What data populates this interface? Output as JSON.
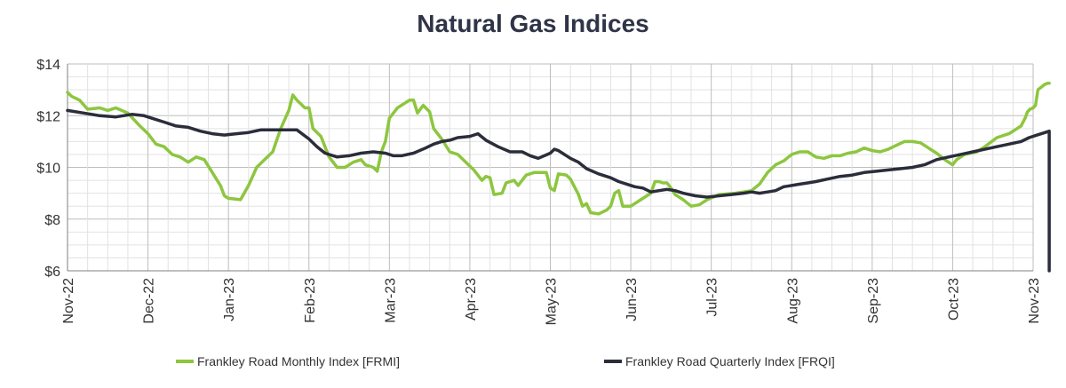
{
  "chart_data": {
    "type": "line",
    "title": "Natural Gas Indices",
    "xlabel": "",
    "ylabel": "",
    "ylim": [
      6,
      14
    ],
    "y_ticks": [
      "$6",
      "$8",
      "$10",
      "$12",
      "$14"
    ],
    "y_tick_values": [
      6,
      8,
      10,
      12,
      14
    ],
    "x_ticks": [
      "Nov-22",
      "Dec-22",
      "Jan-23",
      "Feb-23",
      "Mar-23",
      "Apr-23",
      "May-23",
      "Jun-23",
      "Jul-23",
      "Aug-23",
      "Sep-23",
      "Oct-23",
      "Nov-23"
    ],
    "grid": true,
    "legend_position": "bottom",
    "series": [
      {
        "name": "Frankley Road Monthly Index [FRMI]",
        "color": "#8dc63f",
        "points": [
          [
            0,
            12.9
          ],
          [
            0.05,
            12.75
          ],
          [
            0.15,
            12.6
          ],
          [
            0.25,
            12.25
          ],
          [
            0.4,
            12.3
          ],
          [
            0.5,
            12.2
          ],
          [
            0.6,
            12.3
          ],
          [
            0.75,
            12.1
          ],
          [
            0.9,
            11.6
          ],
          [
            1.0,
            11.3
          ],
          [
            1.1,
            10.9
          ],
          [
            1.2,
            10.8
          ],
          [
            1.3,
            10.5
          ],
          [
            1.4,
            10.4
          ],
          [
            1.5,
            10.2
          ],
          [
            1.6,
            10.4
          ],
          [
            1.7,
            10.3
          ],
          [
            1.8,
            9.8
          ],
          [
            1.9,
            9.3
          ],
          [
            1.95,
            8.9
          ],
          [
            2.0,
            8.8
          ],
          [
            2.15,
            8.75
          ],
          [
            2.25,
            9.3
          ],
          [
            2.35,
            10.0
          ],
          [
            2.45,
            10.3
          ],
          [
            2.55,
            10.6
          ],
          [
            2.65,
            11.5
          ],
          [
            2.75,
            12.2
          ],
          [
            2.8,
            12.8
          ],
          [
            2.85,
            12.6
          ],
          [
            2.95,
            12.3
          ],
          [
            3.0,
            12.3
          ],
          [
            3.05,
            11.5
          ],
          [
            3.15,
            11.2
          ],
          [
            3.25,
            10.4
          ],
          [
            3.35,
            10.0
          ],
          [
            3.45,
            10.0
          ],
          [
            3.55,
            10.2
          ],
          [
            3.65,
            10.3
          ],
          [
            3.7,
            10.1
          ],
          [
            3.8,
            10.0
          ],
          [
            3.85,
            9.85
          ],
          [
            3.9,
            10.6
          ],
          [
            3.95,
            11.0
          ],
          [
            4.0,
            11.9
          ],
          [
            4.1,
            12.3
          ],
          [
            4.2,
            12.5
          ],
          [
            4.25,
            12.6
          ],
          [
            4.3,
            12.6
          ],
          [
            4.35,
            12.1
          ],
          [
            4.42,
            12.4
          ],
          [
            4.5,
            12.15
          ],
          [
            4.55,
            11.5
          ],
          [
            4.65,
            11.1
          ],
          [
            4.75,
            10.6
          ],
          [
            4.85,
            10.5
          ],
          [
            4.95,
            10.2
          ],
          [
            5.05,
            9.9
          ],
          [
            5.15,
            9.5
          ],
          [
            5.2,
            9.65
          ],
          [
            5.25,
            9.6
          ],
          [
            5.3,
            8.95
          ],
          [
            5.4,
            9.0
          ],
          [
            5.45,
            9.4
          ],
          [
            5.55,
            9.5
          ],
          [
            5.6,
            9.3
          ],
          [
            5.7,
            9.7
          ],
          [
            5.8,
            9.8
          ],
          [
            5.9,
            9.8
          ],
          [
            5.95,
            9.8
          ],
          [
            6.0,
            9.2
          ],
          [
            6.05,
            9.1
          ],
          [
            6.1,
            9.75
          ],
          [
            6.2,
            9.7
          ],
          [
            6.25,
            9.55
          ],
          [
            6.35,
            8.95
          ],
          [
            6.4,
            8.5
          ],
          [
            6.45,
            8.6
          ],
          [
            6.5,
            8.25
          ],
          [
            6.6,
            8.2
          ],
          [
            6.7,
            8.35
          ],
          [
            6.75,
            8.5
          ],
          [
            6.8,
            9.0
          ],
          [
            6.85,
            9.1
          ],
          [
            6.9,
            8.5
          ],
          [
            7.0,
            8.5
          ],
          [
            7.1,
            8.7
          ],
          [
            7.2,
            8.9
          ],
          [
            7.25,
            9.0
          ],
          [
            7.3,
            9.45
          ],
          [
            7.35,
            9.45
          ],
          [
            7.4,
            9.4
          ],
          [
            7.45,
            9.4
          ],
          [
            7.5,
            9.2
          ],
          [
            7.55,
            8.95
          ],
          [
            7.65,
            8.75
          ],
          [
            7.75,
            8.5
          ],
          [
            7.85,
            8.55
          ],
          [
            7.95,
            8.75
          ],
          [
            8.1,
            8.95
          ],
          [
            8.3,
            9.0
          ],
          [
            8.4,
            9.05
          ],
          [
            8.5,
            9.1
          ],
          [
            8.6,
            9.35
          ],
          [
            8.7,
            9.8
          ],
          [
            8.8,
            10.1
          ],
          [
            8.9,
            10.25
          ],
          [
            9.0,
            10.5
          ],
          [
            9.1,
            10.6
          ],
          [
            9.2,
            10.6
          ],
          [
            9.3,
            10.4
          ],
          [
            9.4,
            10.35
          ],
          [
            9.5,
            10.45
          ],
          [
            9.6,
            10.45
          ],
          [
            9.7,
            10.55
          ],
          [
            9.8,
            10.6
          ],
          [
            9.9,
            10.75
          ],
          [
            10.0,
            10.65
          ],
          [
            10.1,
            10.6
          ],
          [
            10.2,
            10.7
          ],
          [
            10.3,
            10.85
          ],
          [
            10.4,
            11.0
          ],
          [
            10.5,
            11.0
          ],
          [
            10.6,
            10.95
          ],
          [
            10.7,
            10.75
          ],
          [
            10.8,
            10.55
          ],
          [
            10.9,
            10.3
          ],
          [
            11.0,
            10.1
          ],
          [
            11.05,
            10.3
          ],
          [
            11.15,
            10.5
          ],
          [
            11.3,
            10.6
          ],
          [
            11.4,
            10.8
          ],
          [
            11.55,
            11.15
          ],
          [
            11.7,
            11.3
          ],
          [
            11.8,
            11.5
          ],
          [
            11.85,
            11.6
          ],
          [
            11.9,
            11.9
          ],
          [
            11.93,
            12.15
          ],
          [
            11.96,
            12.25
          ],
          [
            12.0,
            12.3
          ],
          [
            12.03,
            12.4
          ],
          [
            12.06,
            13.0
          ],
          [
            12.1,
            13.1
          ],
          [
            12.14,
            13.2
          ],
          [
            12.18,
            13.25
          ],
          [
            12.2,
            13.25
          ]
        ]
      },
      {
        "name": "Frankley Road Quarterly Index [FRQI]",
        "color": "#2b2d3b",
        "points": [
          [
            0,
            12.2
          ],
          [
            0.2,
            12.1
          ],
          [
            0.4,
            12.0
          ],
          [
            0.6,
            11.95
          ],
          [
            0.8,
            12.05
          ],
          [
            0.95,
            12.0
          ],
          [
            1.05,
            11.9
          ],
          [
            1.2,
            11.75
          ],
          [
            1.35,
            11.6
          ],
          [
            1.5,
            11.55
          ],
          [
            1.65,
            11.4
          ],
          [
            1.8,
            11.3
          ],
          [
            1.95,
            11.25
          ],
          [
            2.1,
            11.3
          ],
          [
            2.25,
            11.35
          ],
          [
            2.4,
            11.45
          ],
          [
            2.55,
            11.45
          ],
          [
            2.7,
            11.45
          ],
          [
            2.85,
            11.45
          ],
          [
            3.0,
            11.1
          ],
          [
            3.1,
            10.8
          ],
          [
            3.2,
            10.55
          ],
          [
            3.35,
            10.4
          ],
          [
            3.5,
            10.45
          ],
          [
            3.65,
            10.55
          ],
          [
            3.8,
            10.6
          ],
          [
            3.95,
            10.55
          ],
          [
            4.05,
            10.45
          ],
          [
            4.15,
            10.45
          ],
          [
            4.3,
            10.55
          ],
          [
            4.45,
            10.75
          ],
          [
            4.55,
            10.9
          ],
          [
            4.65,
            11.0
          ],
          [
            4.75,
            11.05
          ],
          [
            4.85,
            11.15
          ],
          [
            5.0,
            11.2
          ],
          [
            5.1,
            11.3
          ],
          [
            5.2,
            11.05
          ],
          [
            5.35,
            10.8
          ],
          [
            5.5,
            10.6
          ],
          [
            5.65,
            10.6
          ],
          [
            5.75,
            10.45
          ],
          [
            5.85,
            10.35
          ],
          [
            6.0,
            10.55
          ],
          [
            6.05,
            10.7
          ],
          [
            6.1,
            10.65
          ],
          [
            6.15,
            10.55
          ],
          [
            6.25,
            10.35
          ],
          [
            6.35,
            10.2
          ],
          [
            6.45,
            9.95
          ],
          [
            6.6,
            9.75
          ],
          [
            6.75,
            9.6
          ],
          [
            6.85,
            9.45
          ],
          [
            6.95,
            9.35
          ],
          [
            7.05,
            9.25
          ],
          [
            7.15,
            9.2
          ],
          [
            7.25,
            9.05
          ],
          [
            7.35,
            9.1
          ],
          [
            7.45,
            9.15
          ],
          [
            7.55,
            9.1
          ],
          [
            7.65,
            9.0
          ],
          [
            7.8,
            8.9
          ],
          [
            7.95,
            8.85
          ],
          [
            8.1,
            8.9
          ],
          [
            8.25,
            8.95
          ],
          [
            8.4,
            9.0
          ],
          [
            8.5,
            9.05
          ],
          [
            8.6,
            9.0
          ],
          [
            8.7,
            9.05
          ],
          [
            8.8,
            9.1
          ],
          [
            8.9,
            9.25
          ],
          [
            9.0,
            9.3
          ],
          [
            9.1,
            9.35
          ],
          [
            9.2,
            9.4
          ],
          [
            9.3,
            9.45
          ],
          [
            9.45,
            9.55
          ],
          [
            9.6,
            9.65
          ],
          [
            9.75,
            9.7
          ],
          [
            9.9,
            9.8
          ],
          [
            10.05,
            9.85
          ],
          [
            10.2,
            9.9
          ],
          [
            10.35,
            9.95
          ],
          [
            10.5,
            10.0
          ],
          [
            10.65,
            10.1
          ],
          [
            10.8,
            10.3
          ],
          [
            10.95,
            10.4
          ],
          [
            11.1,
            10.5
          ],
          [
            11.25,
            10.6
          ],
          [
            11.4,
            10.7
          ],
          [
            11.55,
            10.8
          ],
          [
            11.7,
            10.9
          ],
          [
            11.85,
            11.0
          ],
          [
            11.95,
            11.15
          ],
          [
            12.05,
            11.25
          ],
          [
            12.15,
            11.35
          ],
          [
            12.2,
            11.4
          ],
          [
            12.2,
            6.0
          ]
        ]
      }
    ]
  }
}
